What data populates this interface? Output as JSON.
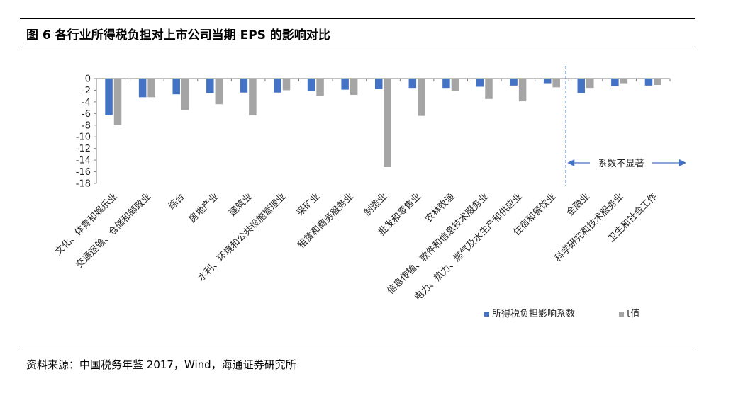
{
  "figure": {
    "title": "图 6  各行业所得税负担对上市公司当期 EPS 的影响对比",
    "source": "资料来源：中国税务年鉴 2017，Wind，海通证券研究所"
  },
  "chart_data": {
    "type": "bar",
    "categories": [
      "文化、体育和娱乐业",
      "交通运输、仓储和邮政业",
      "综合",
      "房地产业",
      "建筑业",
      "水利、环境和公共设施管理业",
      "采矿业",
      "租赁和商务服务业",
      "制造业",
      "批发和零售业",
      "农林牧渔",
      "信息传输、软件和信息技术服务业",
      "电力、热力、燃气及水生产和供应业",
      "住宿和餐饮业",
      "金融业",
      "科学研究和技术服务业",
      "卫生和社会工作"
    ],
    "series": [
      {
        "name": "所得税负担影响系数",
        "color": "#4472C4",
        "values": [
          -6.3,
          -3.2,
          -2.7,
          -2.5,
          -2.4,
          -2.4,
          -2.1,
          -1.9,
          -1.8,
          -1.6,
          -1.6,
          -1.4,
          -1.2,
          -0.8,
          -2.5,
          -1.3,
          -1.2
        ]
      },
      {
        "name": "t值",
        "color": "#A5A5A5",
        "values": [
          -8.0,
          -3.2,
          -5.4,
          -4.4,
          -6.3,
          -2.0,
          -3.0,
          -2.8,
          -15.2,
          -6.4,
          -2.1,
          -3.5,
          -3.9,
          -1.5,
          -1.6,
          -0.8,
          -1.1
        ]
      }
    ],
    "ylim": [
      -18,
      0
    ],
    "yticks": [
      0,
      -2,
      -4,
      -6,
      -8,
      -10,
      -12,
      -14,
      -16,
      -18
    ],
    "divider_after_index": 13,
    "annotation": "系数不显著",
    "legend_position": "bottom-right",
    "grid": false
  }
}
